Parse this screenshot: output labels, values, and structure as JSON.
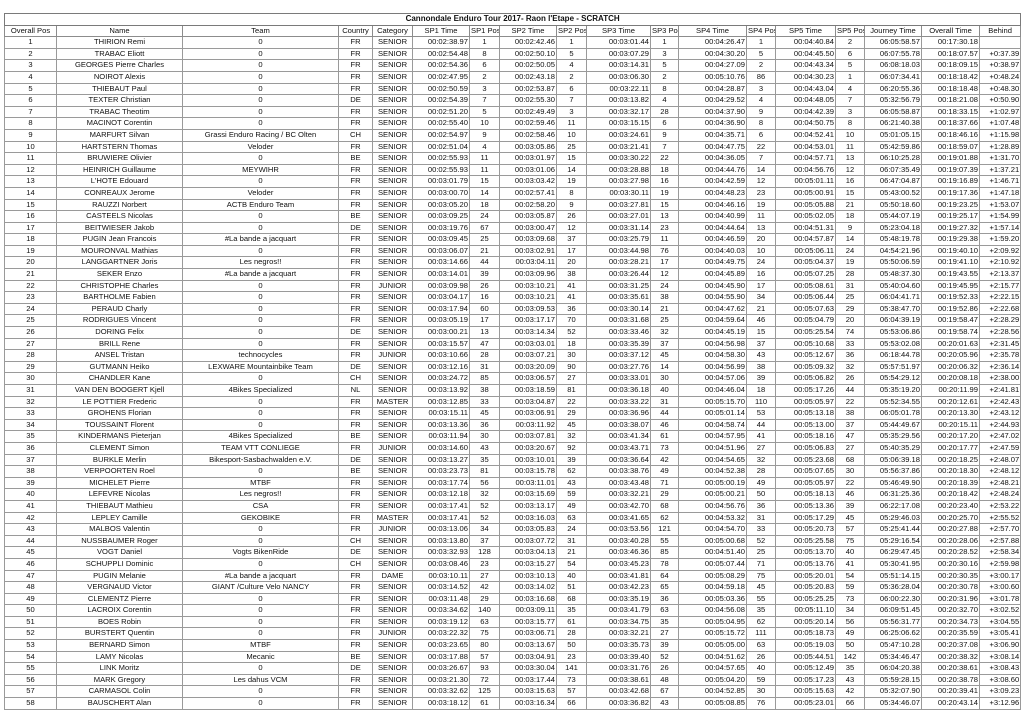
{
  "title": "Cannondale Enduro Tour 2017- Raon l'Etape - SCRATCH",
  "columns": [
    "Overall Pos",
    "Name",
    "Team",
    "Country",
    "Category",
    "SP1 Time",
    "SP1 Pos",
    "SP2 Time",
    "SP2 Pos",
    "SP3 Time",
    "SP3 Pos",
    "SP4 Time",
    "SP4 Pos",
    "SP5 Time",
    "SP5 Pos",
    "Journey Time",
    "Overall Time",
    "Behind"
  ],
  "rows": [
    [
      "1",
      "THIRION Remi",
      "0",
      "FR",
      "SENIOR",
      "00:02:38.97",
      "1",
      "00:02:42.46",
      "1",
      "00:03:01.44",
      "1",
      "00:04:26.47",
      "1",
      "00:04:40.84",
      "2",
      "06:05:58.57",
      "00:17:30.18",
      ""
    ],
    [
      "2",
      "TRABAC Eliott",
      "0",
      "FR",
      "SENIOR",
      "00:02:54.48",
      "8",
      "00:02:50.10",
      "5",
      "00:03:07.29",
      "3",
      "00:04:30.20",
      "5",
      "00:04:45.50",
      "6",
      "06:07:55.78",
      "00:18:07.57",
      "+0:37.39"
    ],
    [
      "3",
      "GEORGES Pierre Charles",
      "0",
      "FR",
      "SENIOR",
      "00:02:54.36",
      "6",
      "00:02:50.05",
      "4",
      "00:03:14.31",
      "5",
      "00:04:27.09",
      "2",
      "00:04:43.34",
      "5",
      "06:08:18.03",
      "00:18:09.15",
      "+0:38.97"
    ],
    [
      "4",
      "NOIROT Alexis",
      "0",
      "FR",
      "SENIOR",
      "00:02:47.95",
      "2",
      "00:02:43.18",
      "2",
      "00:03:06.30",
      "2",
      "00:05:10.76",
      "86",
      "00:04:30.23",
      "1",
      "06:07:34.41",
      "00:18:18.42",
      "+0:48.24"
    ],
    [
      "5",
      "THIEBAUT Paul",
      "0",
      "FR",
      "SENIOR",
      "00:02:50.59",
      "3",
      "00:02:53.87",
      "6",
      "00:03:22.11",
      "8",
      "00:04:28.87",
      "3",
      "00:04:43.04",
      "4",
      "06:20:55.36",
      "00:18:18.48",
      "+0:48.30"
    ],
    [
      "6",
      "TEXTER Christian",
      "0",
      "DE",
      "SENIOR",
      "00:02:54.39",
      "7",
      "00:02:55.30",
      "7",
      "00:03:13.82",
      "4",
      "00:04:29.52",
      "4",
      "00:04:48.05",
      "7",
      "05:32:56.79",
      "00:18:21.08",
      "+0:50.90"
    ],
    [
      "7",
      "TRABAC Theotim",
      "0",
      "FR",
      "SENIOR",
      "00:02:51.20",
      "5",
      "00:02:49.49",
      "3",
      "00:03:32.17",
      "28",
      "00:04:37.90",
      "9",
      "00:04:42.39",
      "3",
      "06:05:58.87",
      "00:18:33.15",
      "+1:02.97"
    ],
    [
      "8",
      "MACINOT Corentin",
      "0",
      "FR",
      "SENIOR",
      "00:02:55.40",
      "10",
      "00:02:59.46",
      "11",
      "00:03:15.15",
      "6",
      "00:04:36.90",
      "8",
      "00:04:50.75",
      "8",
      "06:21:40.38",
      "00:18:37.66",
      "+1:07.48"
    ],
    [
      "9",
      "MARFURT Silvan",
      "Grassi Enduro Racing / BC Olten",
      "CH",
      "SENIOR",
      "00:02:54.97",
      "9",
      "00:02:58.46",
      "10",
      "00:03:24.61",
      "9",
      "00:04:35.71",
      "6",
      "00:04:52.41",
      "10",
      "05:01:05.15",
      "00:18:46.16",
      "+1:15.98"
    ],
    [
      "10",
      "HARTSTERN Thomas",
      "Veloder",
      "FR",
      "SENIOR",
      "00:02:51.04",
      "4",
      "00:03:05.86",
      "25",
      "00:03:21.41",
      "7",
      "00:04:47.75",
      "22",
      "00:04:53.01",
      "11",
      "05:42:59.86",
      "00:18:59.07",
      "+1:28.89"
    ],
    [
      "11",
      "BRUWIERE Olivier",
      "0",
      "BE",
      "SENIOR",
      "00:02:55.93",
      "11",
      "00:03:01.97",
      "15",
      "00:03:30.22",
      "22",
      "00:04:36.05",
      "7",
      "00:04:57.71",
      "13",
      "06:10:25.28",
      "00:19:01.88",
      "+1:31.70"
    ],
    [
      "12",
      "HEINRICH Guillaume",
      "MEYWIHR",
      "FR",
      "SENIOR",
      "00:02:55.93",
      "11",
      "00:03:01.06",
      "14",
      "00:03:28.88",
      "18",
      "00:04:44.76",
      "14",
      "00:04:56.76",
      "12",
      "06:07:35.49",
      "00:19:07.39",
      "+1:37.21"
    ],
    [
      "13",
      "L'HOTE Edouard",
      "0",
      "FR",
      "SENIOR",
      "00:03:01.79",
      "15",
      "00:03:03.42",
      "19",
      "00:03:27.98",
      "16",
      "00:04:42.59",
      "12",
      "00:05:01.11",
      "16",
      "06:47:04.87",
      "00:19:16.89",
      "+1:46.71"
    ],
    [
      "14",
      "CONREAUX Jerome",
      "Veloder",
      "FR",
      "SENIOR",
      "00:03:00.70",
      "14",
      "00:02:57.41",
      "8",
      "00:03:30.11",
      "19",
      "00:04:48.23",
      "23",
      "00:05:00.91",
      "15",
      "05:43:00.52",
      "00:19:17.36",
      "+1:47.18"
    ],
    [
      "15",
      "RAUZZI Norbert",
      "ACTB Enduro Team",
      "FR",
      "SENIOR",
      "00:03:05.20",
      "18",
      "00:02:58.20",
      "9",
      "00:03:27.81",
      "15",
      "00:04:46.16",
      "19",
      "00:05:05.88",
      "21",
      "05:50:18.60",
      "00:19:23.25",
      "+1:53.07"
    ],
    [
      "16",
      "CASTEELS Nicolas",
      "0",
      "BE",
      "SENIOR",
      "00:03:09.25",
      "24",
      "00:03:05.87",
      "26",
      "00:03:27.01",
      "13",
      "00:04:40.99",
      "11",
      "00:05:02.05",
      "18",
      "05:44:07.19",
      "00:19:25.17",
      "+1:54.99"
    ],
    [
      "17",
      "BEITWIESER Jakob",
      "0",
      "DE",
      "SENIOR",
      "00:03:19.76",
      "67",
      "00:03:00.47",
      "12",
      "00:03:31.14",
      "23",
      "00:04:44.64",
      "13",
      "00:04:51.31",
      "9",
      "05:23:04.18",
      "00:19:27.32",
      "+1:57.14"
    ],
    [
      "18",
      "PUGIN Jean Francois",
      "#La bande a jacquart",
      "FR",
      "SENIOR",
      "00:03:09.45",
      "25",
      "00:03:09.68",
      "37",
      "00:03:25.79",
      "11",
      "00:04:46.59",
      "20",
      "00:04:57.87",
      "14",
      "05:48:19.78",
      "00:19:29.38",
      "+1:59.20"
    ],
    [
      "19",
      "MOURONVAL Mathias",
      "0",
      "FR",
      "SENIOR",
      "00:03:06.07",
      "21",
      "00:03:02.91",
      "17",
      "00:03:44.98",
      "76",
      "00:04:40.03",
      "10",
      "00:05:06.11",
      "24",
      "04:54:21.96",
      "00:19:40.10",
      "+2:09.92"
    ],
    [
      "20",
      "LANGGARTNER Joris",
      "Les negros!!",
      "FR",
      "SENIOR",
      "00:03:14.66",
      "44",
      "00:03:04.11",
      "20",
      "00:03:28.21",
      "17",
      "00:04:49.75",
      "24",
      "00:05:04.37",
      "19",
      "05:50:06.59",
      "00:19:41.10",
      "+2:10.92"
    ],
    [
      "21",
      "SEKER Enzo",
      "#La bande a jacquart",
      "FR",
      "SENIOR",
      "00:03:14.01",
      "39",
      "00:03:09.96",
      "38",
      "00:03:26.44",
      "12",
      "00:04:45.89",
      "16",
      "00:05:07.25",
      "28",
      "05:48:37.30",
      "00:19:43.55",
      "+2:13.37"
    ],
    [
      "22",
      "CHRISTOPHE Charles",
      "0",
      "FR",
      "JUNIOR",
      "00:03:09.98",
      "26",
      "00:03:10.21",
      "41",
      "00:03:31.25",
      "24",
      "00:04:45.90",
      "17",
      "00:05:08.61",
      "31",
      "05:40:04.60",
      "00:19:45.95",
      "+2:15.77"
    ],
    [
      "23",
      "BARTHOLME Fabien",
      "0",
      "FR",
      "SENIOR",
      "00:03:04.17",
      "16",
      "00:03:10.21",
      "41",
      "00:03:35.61",
      "38",
      "00:04:55.90",
      "34",
      "00:05:06.44",
      "25",
      "06:04:41.71",
      "00:19:52.33",
      "+2:22.15"
    ],
    [
      "24",
      "PERAUD Charly",
      "0",
      "FR",
      "SENIOR",
      "00:03:17.94",
      "60",
      "00:03:09.53",
      "36",
      "00:03:30.14",
      "21",
      "00:04:47.62",
      "21",
      "00:05:07.63",
      "29",
      "05:38:47.70",
      "00:19:52.86",
      "+2:22.68"
    ],
    [
      "25",
      "RODRIGUES Vincent",
      "0",
      "FR",
      "SENIOR",
      "00:03:05.19",
      "17",
      "00:03:17.17",
      "70",
      "00:03:31.68",
      "25",
      "00:04:59.64",
      "46",
      "00:05:04.79",
      "20",
      "06:04:39.19",
      "00:19:58.47",
      "+2:28.29"
    ],
    [
      "26",
      "DORING Felix",
      "0",
      "DE",
      "SENIOR",
      "00:03:00.21",
      "13",
      "00:03:14.34",
      "52",
      "00:03:33.46",
      "32",
      "00:04:45.19",
      "15",
      "00:05:25.54",
      "74",
      "05:53:06.86",
      "00:19:58.74",
      "+2:28.56"
    ],
    [
      "27",
      "BRILL Rene",
      "0",
      "FR",
      "SENIOR",
      "00:03:15.57",
      "47",
      "00:03:03.01",
      "18",
      "00:03:35.39",
      "37",
      "00:04:56.98",
      "37",
      "00:05:10.68",
      "33",
      "05:53:02.08",
      "00:20:01.63",
      "+2:31.45"
    ],
    [
      "28",
      "ANSEL Tristan",
      "technocycles",
      "FR",
      "JUNIOR",
      "00:03:10.66",
      "28",
      "00:03:07.21",
      "30",
      "00:03:37.12",
      "45",
      "00:04:58.30",
      "43",
      "00:05:12.67",
      "36",
      "06:18:44.78",
      "00:20:05.96",
      "+2:35.78"
    ],
    [
      "29",
      "GUTMANN Heiko",
      "LEXWARE Mountainbike Team",
      "DE",
      "SENIOR",
      "00:03:12.16",
      "31",
      "00:03:20.09",
      "90",
      "00:03:27.76",
      "14",
      "00:04:56.99",
      "38",
      "00:05:09.32",
      "32",
      "05:57:51.97",
      "00:20:06.32",
      "+2:36.14"
    ],
    [
      "30",
      "CHANDLER Kane",
      "0",
      "CH",
      "SENIOR",
      "00:03:24.72",
      "85",
      "00:03:06.57",
      "27",
      "00:03:33.01",
      "30",
      "00:04:57.06",
      "39",
      "00:05:06.82",
      "26",
      "05:54:29.12",
      "00:20:08.18",
      "+2:38.00"
    ],
    [
      "31",
      "VAN DEN BOOGERT Kjell",
      "4Bikes Specialized",
      "NL",
      "SENIOR",
      "00:03:13.92",
      "38",
      "00:03:18.59",
      "81",
      "00:03:36.18",
      "40",
      "00:04:46.04",
      "18",
      "00:05:17.26",
      "44",
      "05:35:19.20",
      "00:20:11.99",
      "+2:41.81"
    ],
    [
      "32",
      "LE POTTIER Frederic",
      "0",
      "FR",
      "MASTER",
      "00:03:12.85",
      "33",
      "00:03:04.87",
      "22",
      "00:03:33.22",
      "31",
      "00:05:15.70",
      "110",
      "00:05:05.97",
      "22",
      "05:52:34.55",
      "00:20:12.61",
      "+2:42.43"
    ],
    [
      "33",
      "GROHENS Florian",
      "0",
      "FR",
      "SENIOR",
      "00:03:15.11",
      "45",
      "00:03:06.91",
      "29",
      "00:03:36.96",
      "44",
      "00:05:01.14",
      "53",
      "00:05:13.18",
      "38",
      "06:05:01.78",
      "00:20:13.30",
      "+2:43.12"
    ],
    [
      "34",
      "TOUSSAINT Florent",
      "0",
      "FR",
      "SENIOR",
      "00:03:13.36",
      "36",
      "00:03:11.92",
      "45",
      "00:03:38.07",
      "46",
      "00:04:58.74",
      "44",
      "00:05:13.00",
      "37",
      "05:44:49.67",
      "00:20:15.11",
      "+2:44.93"
    ],
    [
      "35",
      "KINDERMANS Pieterjan",
      "4Bikes Specialized",
      "BE",
      "SENIOR",
      "00:03:11.94",
      "30",
      "00:03:07.81",
      "32",
      "00:03:41.34",
      "61",
      "00:04:57.95",
      "41",
      "00:05:18.16",
      "47",
      "05:35:29.56",
      "00:20:17.20",
      "+2:47.02"
    ],
    [
      "36",
      "CLEMENT Simon",
      "TEAM VTT CONLIEGE",
      "FR",
      "JUNIOR",
      "00:03:14.60",
      "43",
      "00:03:20.67",
      "92",
      "00:03:43.71",
      "73",
      "00:04:51.96",
      "27",
      "00:05:06.83",
      "27",
      "05:40:35.29",
      "00:20:17.77",
      "+2:47.59"
    ],
    [
      "37",
      "BURKLE Merlin",
      "Bikesport-Sasbachwalden e.V.",
      "DE",
      "SENIOR",
      "00:03:13.27",
      "35",
      "00:03:10.01",
      "39",
      "00:03:36.64",
      "42",
      "00:04:54.65",
      "32",
      "00:05:23.68",
      "68",
      "05:06:39.18",
      "00:20:18.25",
      "+2:48.07"
    ],
    [
      "38",
      "VERPOORTEN Roel",
      "0",
      "BE",
      "SENIOR",
      "00:03:23.73",
      "81",
      "00:03:15.78",
      "62",
      "00:03:38.76",
      "49",
      "00:04:52.38",
      "28",
      "00:05:07.65",
      "30",
      "05:56:37.86",
      "00:20:18.30",
      "+2:48.12"
    ],
    [
      "39",
      "MICHELET Pierre",
      "MTBF",
      "FR",
      "SENIOR",
      "00:03:17.74",
      "56",
      "00:03:11.01",
      "43",
      "00:03:43.48",
      "71",
      "00:05:00.19",
      "49",
      "00:05:05.97",
      "22",
      "05:46:49.90",
      "00:20:18.39",
      "+2:48.21"
    ],
    [
      "40",
      "LEFEVRE Nicolas",
      "Les negros!!",
      "FR",
      "SENIOR",
      "00:03:12.18",
      "32",
      "00:03:15.69",
      "59",
      "00:03:32.21",
      "29",
      "00:05:00.21",
      "50",
      "00:05:18.13",
      "46",
      "06:31:25.36",
      "00:20:18.42",
      "+2:48.24"
    ],
    [
      "41",
      "THIEBAUT Mathieu",
      "CSA",
      "FR",
      "SENIOR",
      "00:03:17.41",
      "52",
      "00:03:13.17",
      "49",
      "00:03:42.70",
      "68",
      "00:04:56.76",
      "36",
      "00:05:13.36",
      "39",
      "06:22:17.08",
      "00:20:23.40",
      "+2:53.22"
    ],
    [
      "42",
      "LEPLEY Camille",
      "GEKOBIKE",
      "FR",
      "MASTER",
      "00:03:17.41",
      "52",
      "00:03:16.03",
      "63",
      "00:03:41.65",
      "62",
      "00:04:53.32",
      "31",
      "00:05:17.29",
      "45",
      "05:29:46.03",
      "00:20:25.70",
      "+2:55.52"
    ],
    [
      "43",
      "MALBOS Valentin",
      "0",
      "FR",
      "JUNIOR",
      "00:03:13.06",
      "34",
      "00:03:05.83",
      "24",
      "00:03:53.56",
      "121",
      "00:04:54.70",
      "33",
      "00:05:20.73",
      "57",
      "05:25:41.44",
      "00:20:27.88",
      "+2:57.70"
    ],
    [
      "44",
      "NUSSBAUMER Roger",
      "0",
      "CH",
      "SENIOR",
      "00:03:13.80",
      "37",
      "00:03:07.72",
      "31",
      "00:03:40.28",
      "55",
      "00:05:00.68",
      "52",
      "00:05:25.58",
      "75",
      "05:29:16.54",
      "00:20:28.06",
      "+2:57.88"
    ],
    [
      "45",
      "VOGT Daniel",
      "Vogts BikenRide",
      "DE",
      "SENIOR",
      "00:03:32.93",
      "128",
      "00:03:04.13",
      "21",
      "00:03:46.36",
      "85",
      "00:04:51.40",
      "25",
      "00:05:13.70",
      "40",
      "06:29:47.45",
      "00:20:28.52",
      "+2:58.34"
    ],
    [
      "46",
      "SCHUPPLI Dominic",
      "0",
      "CH",
      "SENIOR",
      "00:03:08.46",
      "23",
      "00:03:15.27",
      "54",
      "00:03:45.23",
      "78",
      "00:05:07.44",
      "71",
      "00:05:13.76",
      "41",
      "05:30:41.95",
      "00:20:30.16",
      "+2:59.98"
    ],
    [
      "47",
      "PUGIN Melanie",
      "#La bande a jacquart",
      "FR",
      "DAME",
      "00:03:10.11",
      "27",
      "00:03:10.13",
      "40",
      "00:03:41.81",
      "64",
      "00:05:08.29",
      "75",
      "00:05:20.01",
      "54",
      "05:51:14.15",
      "00:20:30.35",
      "+3:00.17"
    ],
    [
      "48",
      "VERGNAUD Victor",
      "GIANT /Culture Velo NANCY",
      "FR",
      "SENIOR",
      "00:03:14.52",
      "42",
      "00:03:14.02",
      "51",
      "00:03:42.23",
      "65",
      "00:04:59.18",
      "45",
      "00:05:20.83",
      "59",
      "05:36:28.04",
      "00:20:30.78",
      "+3:00.60"
    ],
    [
      "49",
      "CLEMENTZ Pierre",
      "0",
      "FR",
      "SENIOR",
      "00:03:11.48",
      "29",
      "00:03:16.68",
      "68",
      "00:03:35.19",
      "36",
      "00:05:03.36",
      "55",
      "00:05:25.25",
      "73",
      "06:00:22.30",
      "00:20:31.96",
      "+3:01.78"
    ],
    [
      "50",
      "LACROIX Corentin",
      "0",
      "FR",
      "SENIOR",
      "00:03:34.62",
      "140",
      "00:03:09.11",
      "35",
      "00:03:41.79",
      "63",
      "00:04:56.08",
      "35",
      "00:05:11.10",
      "34",
      "06:09:51.45",
      "00:20:32.70",
      "+3:02.52"
    ],
    [
      "51",
      "BOES Robin",
      "0",
      "FR",
      "SENIOR",
      "00:03:19.12",
      "63",
      "00:03:15.77",
      "61",
      "00:03:34.75",
      "35",
      "00:05:04.95",
      "62",
      "00:05:20.14",
      "56",
      "05:56:31.77",
      "00:20:34.73",
      "+3:04.55"
    ],
    [
      "52",
      "BURSTERT Quentin",
      "0",
      "FR",
      "JUNIOR",
      "00:03:22.32",
      "75",
      "00:03:06.71",
      "28",
      "00:03:32.21",
      "27",
      "00:05:15.72",
      "111",
      "00:05:18.73",
      "49",
      "06:25:06.62",
      "00:20:35.59",
      "+3:05.41"
    ],
    [
      "53",
      "BERNARD Simon",
      "MTBF",
      "FR",
      "SENIOR",
      "00:03:23.65",
      "80",
      "00:03:13.67",
      "50",
      "00:03:35.73",
      "39",
      "00:05:05.00",
      "63",
      "00:05:19.03",
      "50",
      "05:47:10.28",
      "00:20:37.08",
      "+3:06.90"
    ],
    [
      "54",
      "LAMY Nicolas",
      "Mecanic",
      "BE",
      "SENIOR",
      "00:03:17.88",
      "57",
      "00:03:04.91",
      "23",
      "00:03:39.40",
      "52",
      "00:04:51.62",
      "26",
      "00:05:44.51",
      "142",
      "05:34:46.47",
      "00:20:38.32",
      "+3:08.14"
    ],
    [
      "55",
      "LINK Moritz",
      "0",
      "DE",
      "SENIOR",
      "00:03:26.67",
      "93",
      "00:03:30.04",
      "141",
      "00:03:31.76",
      "26",
      "00:04:57.65",
      "40",
      "00:05:12.49",
      "35",
      "06:04:20.38",
      "00:20:38.61",
      "+3:08.43"
    ],
    [
      "56",
      "MARK Gregory",
      "Les dahus VCM",
      "FR",
      "SENIOR",
      "00:03:21.30",
      "72",
      "00:03:17.44",
      "73",
      "00:03:38.61",
      "48",
      "00:05:04.20",
      "59",
      "00:05:17.23",
      "43",
      "05:59:28.15",
      "00:20:38.78",
      "+3:08.60"
    ],
    [
      "57",
      "CARMASOL Colin",
      "0",
      "FR",
      "SENIOR",
      "00:03:32.62",
      "125",
      "00:03:15.63",
      "57",
      "00:03:42.68",
      "67",
      "00:04:52.85",
      "30",
      "00:05:15.63",
      "42",
      "05:32:07.90",
      "00:20:39.41",
      "+3:09.23"
    ],
    [
      "58",
      "BAUSCHERT Alan",
      "0",
      "FR",
      "SENIOR",
      "00:03:18.12",
      "61",
      "00:03:16.34",
      "66",
      "00:03:36.82",
      "43",
      "00:05:08.85",
      "76",
      "00:05:23.01",
      "66",
      "05:34:46.07",
      "00:20:43.14",
      "+3:12.96"
    ]
  ]
}
